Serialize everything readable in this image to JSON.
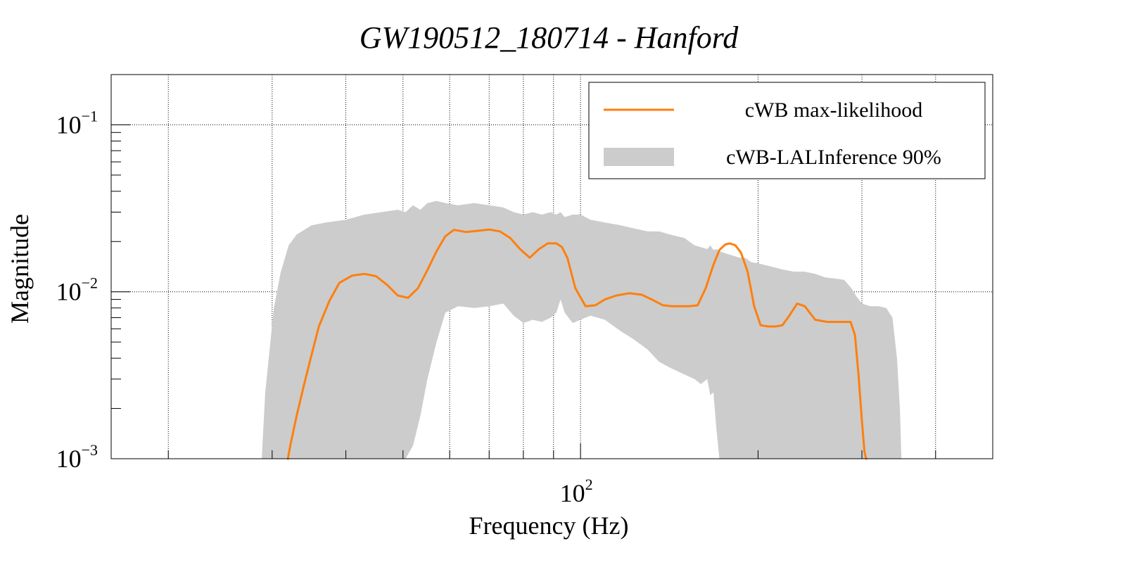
{
  "chart_data": {
    "type": "line",
    "title": "GW190512_180714 - Hanford",
    "xlabel": "Frequency (Hz)",
    "ylabel": "Magnitude",
    "xscale": "log",
    "yscale": "log",
    "xlim": [
      16,
      500
    ],
    "ylim": [
      0.001,
      0.2
    ],
    "grid": true,
    "legend_position": "top-right",
    "x_major_ticks": [
      {
        "base": "10",
        "exp": "2",
        "value": 100
      }
    ],
    "y_major_ticks": [
      {
        "base": "10",
        "exp": "−3",
        "value": 0.001
      },
      {
        "base": "10",
        "exp": "−2",
        "value": 0.01
      },
      {
        "base": "10",
        "exp": "−1",
        "value": 0.1
      }
    ],
    "series": [
      {
        "name": "cWB max-likelihood",
        "kind": "line",
        "color": "#ff7f0e",
        "x": [
          31.9,
          32.2,
          33,
          34,
          35,
          36,
          37.5,
          39,
          41,
          43,
          45,
          47,
          49,
          51,
          53,
          55,
          57,
          59,
          61,
          64,
          67,
          70,
          73,
          76,
          79,
          82,
          85,
          88,
          91,
          93,
          95,
          98,
          102,
          106,
          110,
          115,
          121,
          127,
          132,
          138,
          143,
          147,
          150,
          153,
          158,
          163,
          168,
          172,
          176,
          179,
          183,
          187,
          192,
          197,
          202,
          208,
          214,
          220,
          226,
          233,
          240,
          250,
          262,
          272,
          281,
          287,
          292,
          296,
          300,
          303,
          305
        ],
        "y": [
          0.001,
          0.0012,
          0.0018,
          0.0028,
          0.0042,
          0.0062,
          0.0088,
          0.0113,
          0.0125,
          0.0128,
          0.0124,
          0.011,
          0.0095,
          0.0092,
          0.0105,
          0.0135,
          0.0175,
          0.0215,
          0.0235,
          0.0228,
          0.0232,
          0.0236,
          0.023,
          0.021,
          0.018,
          0.016,
          0.018,
          0.0195,
          0.0195,
          0.0185,
          0.016,
          0.0105,
          0.0082,
          0.0083,
          0.009,
          0.0095,
          0.0098,
          0.0096,
          0.009,
          0.0083,
          0.0082,
          0.0082,
          0.0082,
          0.0082,
          0.0083,
          0.0105,
          0.0145,
          0.0178,
          0.0192,
          0.0195,
          0.019,
          0.0172,
          0.0132,
          0.0082,
          0.0063,
          0.0062,
          0.0062,
          0.0063,
          0.0072,
          0.0085,
          0.0082,
          0.0068,
          0.0066,
          0.0066,
          0.0066,
          0.0066,
          0.0055,
          0.0032,
          0.0017,
          0.0011,
          0.001
        ]
      },
      {
        "name": "cWB-LALInference 90%",
        "kind": "band",
        "color": "#cccccc",
        "x": [
          28.8,
          29.2,
          30.2,
          31,
          32,
          33,
          35,
          37,
          40,
          43,
          46,
          49,
          50.5,
          52,
          53.5,
          55,
          57,
          59,
          62,
          66,
          70,
          74,
          77,
          80,
          83,
          86,
          89,
          91,
          92.5,
          94,
          97,
          100,
          104,
          110,
          117,
          123,
          130,
          136,
          142,
          150,
          156,
          160,
          164,
          166,
          168,
          170,
          172,
          176,
          181,
          186,
          190,
          195,
          200,
          210,
          220,
          230,
          240,
          250,
          260,
          270,
          280,
          288,
          293,
          300,
          310,
          320,
          330,
          338,
          344,
          348,
          350
        ],
        "upper": [
          0.001,
          0.0025,
          0.008,
          0.013,
          0.019,
          0.022,
          0.025,
          0.026,
          0.027,
          0.029,
          0.03,
          0.031,
          0.03,
          0.033,
          0.031,
          0.034,
          0.035,
          0.034,
          0.033,
          0.034,
          0.033,
          0.032,
          0.03,
          0.029,
          0.03,
          0.029,
          0.03,
          0.029,
          0.03,
          0.028,
          0.029,
          0.029,
          0.027,
          0.026,
          0.025,
          0.024,
          0.023,
          0.023,
          0.022,
          0.021,
          0.019,
          0.0185,
          0.018,
          0.019,
          0.0178,
          0.018,
          0.0175,
          0.017,
          0.0165,
          0.016,
          0.016,
          0.015,
          0.0148,
          0.0142,
          0.0136,
          0.0132,
          0.0132,
          0.0128,
          0.0122,
          0.012,
          0.0118,
          0.0105,
          0.0095,
          0.0085,
          0.0082,
          0.0082,
          0.008,
          0.007,
          0.004,
          0.002,
          0.001
        ],
        "lower": [
          0.001,
          0.001,
          0.001,
          0.001,
          0.001,
          0.001,
          0.001,
          0.001,
          0.001,
          0.001,
          0.001,
          0.001,
          0.001,
          0.0012,
          0.0018,
          0.003,
          0.005,
          0.0075,
          0.0082,
          0.008,
          0.0082,
          0.0085,
          0.0072,
          0.0065,
          0.0068,
          0.0066,
          0.007,
          0.0075,
          0.009,
          0.0075,
          0.0065,
          0.0068,
          0.0072,
          0.0068,
          0.0058,
          0.0052,
          0.0045,
          0.0038,
          0.0035,
          0.0032,
          0.003,
          0.0028,
          0.003,
          0.0024,
          0.0025,
          0.0015,
          0.001,
          0.001,
          0.001,
          0.001,
          0.001,
          0.001,
          0.001,
          0.001,
          0.001,
          0.001,
          0.001,
          0.001,
          0.001,
          0.001,
          0.001,
          0.001,
          0.001,
          0.001,
          0.001,
          0.001,
          0.001,
          0.001,
          0.001,
          0.001,
          0.001
        ]
      }
    ]
  }
}
